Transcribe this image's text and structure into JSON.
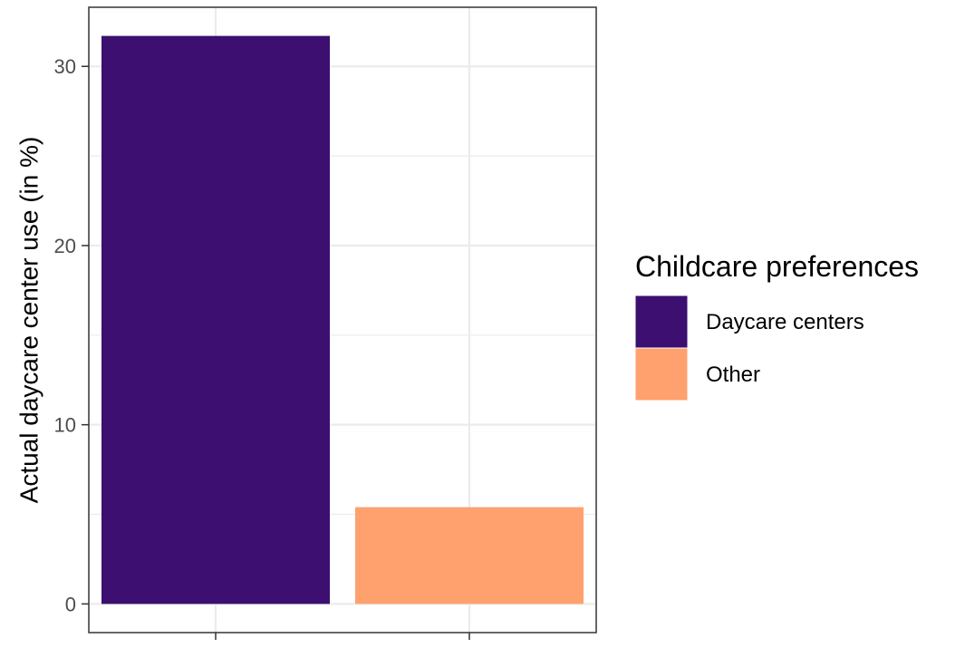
{
  "chart_data": {
    "type": "bar",
    "categories": [
      "Daycare centers",
      "Other"
    ],
    "values": [
      31.7,
      5.4
    ],
    "colors": [
      "#3c0f70",
      "#fea16e"
    ],
    "title": "",
    "xlabel": "",
    "ylabel": "Actual daycare center use (in %)",
    "ylim": [
      -1.6,
      33.3
    ],
    "yticks": [
      0,
      10,
      20,
      30
    ],
    "x_tick_labels_shown": false,
    "grid": true,
    "legend": {
      "title": "Childcare preferences",
      "position": "right",
      "items": [
        {
          "label": "Daycare centers",
          "color": "#3c0f70"
        },
        {
          "label": "Other",
          "color": "#fea16e"
        }
      ]
    }
  }
}
